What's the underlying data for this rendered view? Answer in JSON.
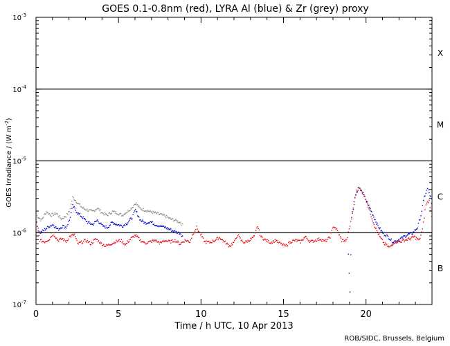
{
  "chart_data": {
    "type": "scatter",
    "title": "GOES 0.1-0.8nm (red), LYRA Al (blue) & Zr (grey) proxy",
    "xlabel": "Time / h UTC, 10 Apr 2013",
    "ylabel_main": "GOES Irradiance / (W m",
    "ylabel_exp": "-2",
    "ylabel_end": ")",
    "credit": "ROB/SIDC, Brussels, Belgium",
    "x_range": [
      0,
      24
    ],
    "x_ticks": [
      0,
      5,
      10,
      15,
      20
    ],
    "x_tick_labels": [
      "0",
      "5",
      "10",
      "15",
      "20"
    ],
    "y_log_range_exp": [
      -7,
      -3
    ],
    "y_tick_exps": [
      -7,
      -6,
      -5,
      -4,
      -3
    ],
    "y_tick_base": "10",
    "y_tick_labels": [
      "-7",
      "-6",
      "-5",
      "-4",
      "-3"
    ],
    "flare_class_lines": [
      -6,
      -5,
      -4
    ],
    "flare_classes": [
      {
        "label": "B",
        "y_exp": -6.5
      },
      {
        "label": "C",
        "y_exp": -5.5
      },
      {
        "label": "M",
        "y_exp": -4.5
      },
      {
        "label": "X",
        "y_exp": -3.5
      }
    ],
    "series": [
      {
        "name": "GOES 0.1-0.8nm",
        "color": "#e8000b",
        "points": [
          [
            0.0,
            -5.85
          ],
          [
            0.2,
            -6.1
          ],
          [
            0.5,
            -6.12
          ],
          [
            0.8,
            -6.08
          ],
          [
            1.0,
            -6.0
          ],
          [
            1.3,
            -6.1
          ],
          [
            1.6,
            -6.08
          ],
          [
            1.8,
            -6.12
          ],
          [
            2.0,
            -6.05
          ],
          [
            2.3,
            -6.02
          ],
          [
            2.5,
            -6.15
          ],
          [
            2.8,
            -6.12
          ],
          [
            3.0,
            -6.1
          ],
          [
            3.3,
            -6.15
          ],
          [
            3.6,
            -6.08
          ],
          [
            3.9,
            -6.14
          ],
          [
            4.2,
            -6.18
          ],
          [
            4.5,
            -6.15
          ],
          [
            4.8,
            -6.12
          ],
          [
            5.1,
            -6.1
          ],
          [
            5.4,
            -6.16
          ],
          [
            5.7,
            -6.08
          ],
          [
            6.0,
            -6.03
          ],
          [
            6.3,
            -6.1
          ],
          [
            6.6,
            -6.14
          ],
          [
            6.9,
            -6.12
          ],
          [
            7.2,
            -6.1
          ],
          [
            7.5,
            -6.14
          ],
          [
            7.8,
            -6.1
          ],
          [
            8.1,
            -6.12
          ],
          [
            8.4,
            -6.1
          ],
          [
            8.7,
            -6.15
          ],
          [
            9.0,
            -6.1
          ],
          [
            9.3,
            -6.12
          ],
          [
            9.5,
            -6.0
          ],
          [
            9.7,
            -5.92
          ],
          [
            9.9,
            -6.0
          ],
          [
            10.2,
            -6.12
          ],
          [
            10.5,
            -6.13
          ],
          [
            10.8,
            -6.1
          ],
          [
            11.1,
            -6.06
          ],
          [
            11.4,
            -6.12
          ],
          [
            11.7,
            -6.18
          ],
          [
            12.0,
            -6.12
          ],
          [
            12.2,
            -6.02
          ],
          [
            12.4,
            -6.1
          ],
          [
            12.6,
            -6.13
          ],
          [
            12.9,
            -6.1
          ],
          [
            13.2,
            -6.05
          ],
          [
            13.4,
            -5.9
          ],
          [
            13.6,
            -6.05
          ],
          [
            13.9,
            -6.1
          ],
          [
            14.2,
            -6.13
          ],
          [
            14.5,
            -6.1
          ],
          [
            14.8,
            -6.15
          ],
          [
            15.1,
            -6.18
          ],
          [
            15.4,
            -6.12
          ],
          [
            15.7,
            -6.1
          ],
          [
            16.0,
            -6.12
          ],
          [
            16.3,
            -6.05
          ],
          [
            16.6,
            -6.12
          ],
          [
            16.9,
            -6.1
          ],
          [
            17.2,
            -6.08
          ],
          [
            17.5,
            -6.12
          ],
          [
            17.8,
            -6.05
          ],
          [
            18.0,
            -5.9
          ],
          [
            18.2,
            -5.95
          ],
          [
            18.5,
            -6.1
          ],
          [
            18.8,
            -6.1
          ],
          [
            19.0,
            -5.9
          ],
          [
            19.2,
            -5.65
          ],
          [
            19.4,
            -5.4
          ],
          [
            19.6,
            -5.38
          ],
          [
            19.8,
            -5.45
          ],
          [
            20.0,
            -5.55
          ],
          [
            20.2,
            -5.7
          ],
          [
            20.5,
            -5.9
          ],
          [
            20.8,
            -6.05
          ],
          [
            21.1,
            -6.15
          ],
          [
            21.4,
            -6.2
          ],
          [
            21.7,
            -6.12
          ],
          [
            22.0,
            -6.12
          ],
          [
            22.3,
            -6.1
          ],
          [
            22.6,
            -6.08
          ],
          [
            22.9,
            -6.05
          ],
          [
            23.2,
            -6.1
          ],
          [
            23.4,
            -5.95
          ],
          [
            23.6,
            -5.6
          ],
          [
            23.8,
            -5.55
          ],
          [
            24.0,
            -5.85
          ]
        ]
      },
      {
        "name": "LYRA Al proxy",
        "color": "#0000cc",
        "points": [
          [
            0.0,
            -5.85
          ],
          [
            0.2,
            -6.0
          ],
          [
            0.5,
            -5.95
          ],
          [
            0.8,
            -5.9
          ],
          [
            1.0,
            -5.88
          ],
          [
            1.3,
            -5.95
          ],
          [
            1.6,
            -5.9
          ],
          [
            1.8,
            -5.92
          ],
          [
            2.0,
            -5.82
          ],
          [
            2.2,
            -5.62
          ],
          [
            2.5,
            -5.72
          ],
          [
            2.8,
            -5.78
          ],
          [
            3.1,
            -5.85
          ],
          [
            3.4,
            -5.88
          ],
          [
            3.7,
            -5.82
          ],
          [
            4.0,
            -5.9
          ],
          [
            4.3,
            -5.92
          ],
          [
            4.6,
            -5.85
          ],
          [
            4.9,
            -5.88
          ],
          [
            5.2,
            -5.9
          ],
          [
            5.5,
            -5.86
          ],
          [
            5.8,
            -5.78
          ],
          [
            6.0,
            -5.68
          ],
          [
            6.3,
            -5.82
          ],
          [
            6.6,
            -5.86
          ],
          [
            6.9,
            -5.84
          ],
          [
            7.2,
            -5.88
          ],
          [
            7.5,
            -5.9
          ],
          [
            7.8,
            -5.92
          ],
          [
            8.1,
            -5.95
          ],
          [
            8.4,
            -5.98
          ],
          [
            8.7,
            -6.0
          ],
          [
            8.9,
            -6.05
          ],
          [
            18.9,
            -6.3
          ],
          [
            19.0,
            -6.8
          ],
          [
            19.1,
            -5.8
          ],
          [
            19.3,
            -5.5
          ],
          [
            19.5,
            -5.38
          ],
          [
            19.7,
            -5.4
          ],
          [
            19.9,
            -5.5
          ],
          [
            20.1,
            -5.6
          ],
          [
            20.4,
            -5.75
          ],
          [
            20.7,
            -5.9
          ],
          [
            21.0,
            -6.0
          ],
          [
            21.3,
            -6.05
          ],
          [
            21.6,
            -6.12
          ],
          [
            21.9,
            -6.1
          ],
          [
            22.2,
            -6.06
          ],
          [
            22.5,
            -6.02
          ],
          [
            22.8,
            -6.0
          ],
          [
            23.1,
            -5.92
          ],
          [
            23.3,
            -5.75
          ],
          [
            23.5,
            -5.5
          ],
          [
            23.7,
            -5.38
          ],
          [
            23.9,
            -5.5
          ],
          [
            24.0,
            -5.7
          ]
        ]
      },
      {
        "name": "LYRA Zr proxy",
        "color": "#888888",
        "points": [
          [
            0.0,
            -5.75
          ],
          [
            0.3,
            -5.82
          ],
          [
            0.6,
            -5.7
          ],
          [
            0.9,
            -5.75
          ],
          [
            1.2,
            -5.72
          ],
          [
            1.5,
            -5.8
          ],
          [
            1.8,
            -5.76
          ],
          [
            2.0,
            -5.7
          ],
          [
            2.2,
            -5.5
          ],
          [
            2.5,
            -5.58
          ],
          [
            2.8,
            -5.65
          ],
          [
            3.1,
            -5.68
          ],
          [
            3.4,
            -5.7
          ],
          [
            3.7,
            -5.65
          ],
          [
            4.0,
            -5.72
          ],
          [
            4.3,
            -5.75
          ],
          [
            4.6,
            -5.7
          ],
          [
            4.9,
            -5.72
          ],
          [
            5.2,
            -5.75
          ],
          [
            5.5,
            -5.7
          ],
          [
            5.8,
            -5.64
          ],
          [
            6.0,
            -5.58
          ],
          [
            6.3,
            -5.66
          ],
          [
            6.6,
            -5.68
          ],
          [
            6.9,
            -5.7
          ],
          [
            7.2,
            -5.72
          ],
          [
            7.5,
            -5.74
          ],
          [
            7.8,
            -5.76
          ],
          [
            8.1,
            -5.8
          ],
          [
            8.4,
            -5.82
          ],
          [
            8.7,
            -5.85
          ],
          [
            8.9,
            -5.9
          ]
        ]
      }
    ]
  }
}
